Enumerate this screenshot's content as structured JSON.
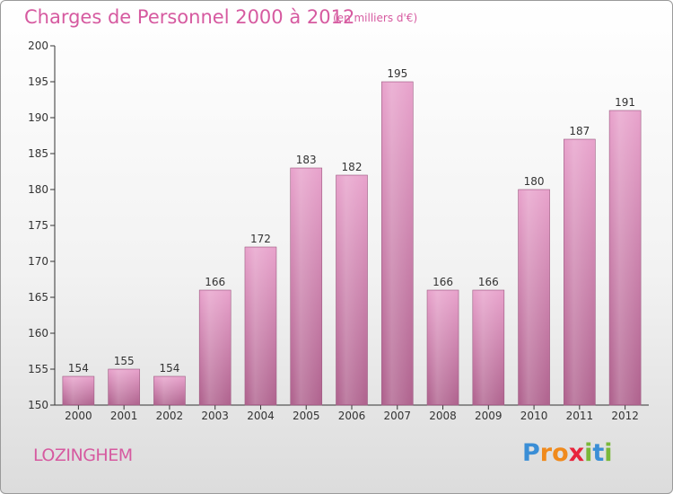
{
  "title": "Charges de Personnel 2000 à 2012",
  "subtitle": "(en milliers d'€)",
  "place": "LOZINGHEM",
  "logo": {
    "text": "Proxiti",
    "letters": [
      "P",
      "r",
      "o",
      "x",
      "i",
      "t",
      "i"
    ],
    "colors": [
      "#3a8ed6",
      "#f08a1c",
      "#f08a1c",
      "#e8243c",
      "#7ab83a",
      "#3a8ed6",
      "#7ab83a"
    ]
  },
  "colors": {
    "bar": "#c86a9e",
    "title": "#d65aa0"
  },
  "chart_data": {
    "type": "bar",
    "title": "Charges de Personnel 2000 à 2012",
    "subtitle": "(en milliers d'€)",
    "categories": [
      "2000",
      "2001",
      "2002",
      "2003",
      "2004",
      "2005",
      "2006",
      "2007",
      "2008",
      "2009",
      "2010",
      "2011",
      "2012"
    ],
    "values": [
      154,
      155,
      154,
      166,
      172,
      183,
      182,
      195,
      166,
      166,
      180,
      187,
      191
    ],
    "ylim": [
      150,
      200
    ],
    "yticks": [
      150,
      155,
      160,
      165,
      170,
      175,
      180,
      185,
      190,
      195,
      200
    ],
    "grid": false,
    "xlabel": "",
    "ylabel": ""
  }
}
